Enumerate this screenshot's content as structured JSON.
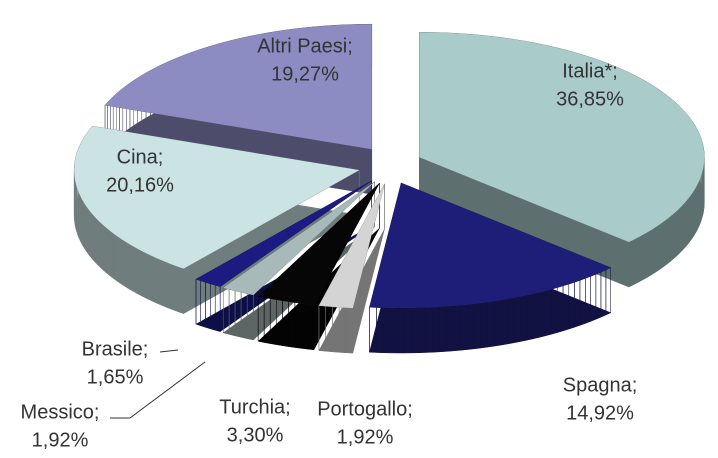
{
  "chart_data": {
    "type": "pie",
    "categories": [
      "Italia*;",
      "Spagna;",
      "Portogallo;",
      "Turchia;",
      "Messico;",
      "Brasile;",
      "Cina;",
      "Altri Paesi;"
    ],
    "values": [
      36.85,
      14.92,
      1.92,
      3.3,
      1.92,
      1.65,
      20.16,
      19.27
    ],
    "value_labels": [
      "36,85%",
      "14,92%",
      "1,92%",
      "3,30%",
      "1,92%",
      "1,65%",
      "20,16%",
      "19,27%"
    ],
    "colors": [
      "#a9cbc9",
      "#1e1e78",
      "#d4d4d4",
      "#060606",
      "#a7b9b8",
      "#1b1b82",
      "#cbe3e3",
      "#8c8cc2"
    ]
  }
}
